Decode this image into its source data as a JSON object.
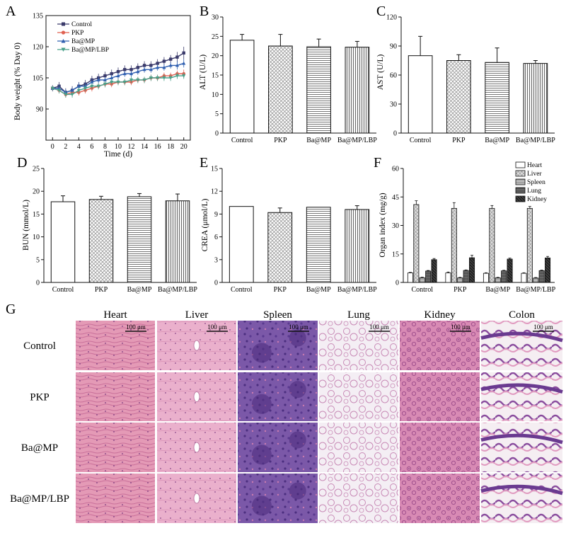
{
  "panel_labels": [
    "A",
    "B",
    "C",
    "D",
    "E",
    "F",
    "G"
  ],
  "chart_data": [
    {
      "panel": "A",
      "type": "line",
      "xlabel": "Time (d)",
      "ylabel": "Body weight (% Day 0)",
      "x": [
        0,
        1,
        2,
        3,
        4,
        5,
        6,
        7,
        8,
        9,
        10,
        11,
        12,
        13,
        14,
        15,
        16,
        17,
        18,
        19,
        20
      ],
      "xticks": [
        0,
        2,
        4,
        6,
        8,
        10,
        12,
        14,
        16,
        18,
        20
      ],
      "yticks": [
        90,
        105,
        120,
        135
      ],
      "ylim": [
        75,
        135
      ],
      "xlim": [
        -1,
        21
      ],
      "series": [
        {
          "name": "Control",
          "color": "#3b3b6b",
          "marker": "square",
          "values": [
            100,
            101,
            98,
            99,
            101,
            102,
            104,
            105,
            106,
            107,
            108,
            109,
            109,
            110,
            111,
            111,
            112,
            113,
            114,
            115,
            117
          ],
          "err": [
            1.5,
            2,
            2,
            2,
            2,
            2,
            2,
            2,
            2,
            2,
            2,
            2,
            2,
            2,
            2,
            2,
            2,
            2,
            2,
            2.5,
            3
          ]
        },
        {
          "name": "PKP",
          "color": "#e06050",
          "marker": "circle",
          "values": [
            100,
            99,
            97,
            98,
            98,
            99,
            100,
            101,
            102,
            102,
            103,
            103,
            103,
            104,
            104,
            105,
            105,
            106,
            106,
            107,
            107
          ],
          "err": [
            1,
            1.5,
            1.5,
            1.5,
            1.5,
            1.5,
            1.5,
            1.5,
            1.5,
            1.5,
            1.5,
            1.5,
            1.5,
            1.5,
            1.5,
            1.5,
            1.5,
            1.5,
            1.5,
            1.5,
            2
          ]
        },
        {
          "name": "Ba@MP",
          "color": "#2f5fb0",
          "marker": "triangle",
          "values": [
            100,
            100,
            98,
            99,
            101,
            101,
            103,
            104,
            104,
            105,
            106,
            107,
            107,
            108,
            109,
            109,
            110,
            110,
            111,
            111,
            112
          ],
          "err": [
            1,
            1.5,
            1.5,
            1.5,
            1.5,
            1.5,
            1.5,
            1.5,
            1.5,
            1.5,
            1.5,
            1.5,
            1.5,
            1.5,
            1.5,
            1.5,
            1.5,
            1.5,
            1.5,
            2,
            2
          ]
        },
        {
          "name": "Ba@MP/LBP",
          "color": "#4aa08a",
          "marker": "triangle-down",
          "values": [
            100,
            99,
            97,
            97,
            99,
            100,
            101,
            101,
            102,
            103,
            103,
            103,
            104,
            104,
            104,
            105,
            105,
            105,
            105,
            106,
            106
          ],
          "err": [
            1,
            1.5,
            1.5,
            1.5,
            1.5,
            1.5,
            1.5,
            1.5,
            1.5,
            1.5,
            1.5,
            1.5,
            1.5,
            1.5,
            1.5,
            1.5,
            1.5,
            1.5,
            1.5,
            1.5,
            1.5
          ]
        }
      ]
    },
    {
      "panel": "B",
      "type": "bar",
      "ylabel": "ALT (U/L)",
      "categories": [
        "Control",
        "PKP",
        "Ba@MP",
        "Ba@MP/LBP"
      ],
      "values": [
        24,
        22.5,
        22.3,
        22.2
      ],
      "err": [
        1.5,
        3,
        2,
        1.5
      ],
      "ylim": [
        0,
        30
      ],
      "yticks": [
        0,
        5,
        10,
        15,
        20,
        25,
        30
      ]
    },
    {
      "panel": "C",
      "type": "bar",
      "ylabel": "AST (U/L)",
      "categories": [
        "Control",
        "PKP",
        "Ba@MP",
        "Ba@MP/LBP"
      ],
      "values": [
        80,
        75,
        73,
        72
      ],
      "err": [
        20,
        6,
        15,
        3
      ],
      "ylim": [
        0,
        120
      ],
      "yticks": [
        0,
        30,
        60,
        90,
        120
      ]
    },
    {
      "panel": "D",
      "type": "bar",
      "ylabel": "BUN (mmol/L)",
      "categories": [
        "Control",
        "PKP",
        "Ba@MP",
        "Ba@MP/LBP"
      ],
      "values": [
        17.7,
        18.2,
        18.8,
        17.9
      ],
      "err": [
        1.3,
        0.7,
        0.7,
        1.5
      ],
      "ylim": [
        0,
        25
      ],
      "yticks": [
        0,
        5,
        10,
        15,
        20,
        25
      ]
    },
    {
      "panel": "E",
      "type": "bar",
      "ylabel": "CREA (μmol/L)",
      "categories": [
        "Control",
        "PKP",
        "Ba@MP",
        "Ba@MP/LBP"
      ],
      "values": [
        10,
        9.2,
        9.9,
        9.6
      ],
      "err": [
        0,
        0.6,
        0,
        0.5
      ],
      "ylim": [
        0,
        15
      ],
      "yticks": [
        0,
        3,
        6,
        9,
        12,
        15
      ]
    },
    {
      "panel": "F",
      "type": "bar",
      "ylabel": "Organ index (mg/g)",
      "categories": [
        "Control",
        "PKP",
        "Ba@MP",
        "Ba@MP/LBP"
      ],
      "series": [
        {
          "name": "Heart",
          "values": [
            5,
            5,
            4.8,
            4.8
          ],
          "err": [
            0.3,
            0.5,
            0.3,
            0.3
          ]
        },
        {
          "name": "Liver",
          "values": [
            41,
            39,
            39,
            39
          ],
          "err": [
            2,
            3,
            1.5,
            1
          ]
        },
        {
          "name": "Spleen",
          "values": [
            2.5,
            2.4,
            2.4,
            2.3
          ],
          "err": [
            0.3,
            0.3,
            0.3,
            0.3
          ]
        },
        {
          "name": "Lung",
          "values": [
            6,
            6.3,
            6.1,
            6.2
          ],
          "err": [
            0.3,
            0.3,
            0.3,
            0.3
          ]
        },
        {
          "name": "Kidney",
          "values": [
            12,
            13,
            12.3,
            12.9
          ],
          "err": [
            0.6,
            1.3,
            0.5,
            0.8
          ]
        }
      ],
      "ylim": [
        0,
        60
      ],
      "yticks": [
        0,
        15,
        30,
        45,
        60
      ]
    }
  ],
  "histology": {
    "panel": "G",
    "columns": [
      "Heart",
      "Liver",
      "Spleen",
      "Lung",
      "Kidney",
      "Colon"
    ],
    "rows": [
      "Control",
      "PKP",
      "Ba@MP",
      "Ba@MP/LBP"
    ],
    "scale_bar": "100 μm"
  }
}
